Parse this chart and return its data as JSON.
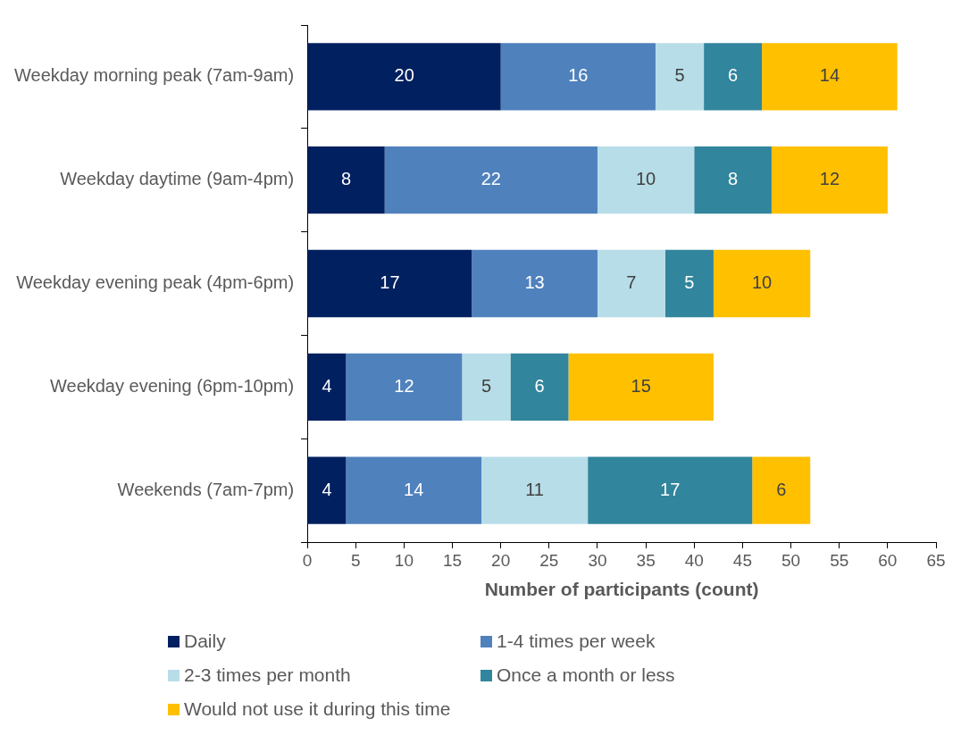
{
  "chart_data": {
    "type": "bar",
    "orientation": "horizontal",
    "stacked": true,
    "data_labels": true,
    "xlabel": "Number of participants (count)",
    "categories": [
      "Weekday morning peak (7am-9am)",
      "Weekday daytime (9am-4pm)",
      "Weekday evening peak (4pm-6pm)",
      "Weekday evening (6pm-10pm)",
      "Weekends (7am-7pm)"
    ],
    "series": [
      {
        "name": "Daily",
        "color": "#002060",
        "values": [
          20,
          8,
          17,
          4,
          4
        ]
      },
      {
        "name": "1-4 times per week",
        "color": "#4f81bd",
        "values": [
          16,
          22,
          13,
          12,
          14
        ]
      },
      {
        "name": "2-3 times per month",
        "color": "#b7dde8",
        "values": [
          5,
          10,
          7,
          5,
          11
        ]
      },
      {
        "name": "Once a month or less",
        "color": "#31859c",
        "values": [
          6,
          8,
          5,
          6,
          17
        ]
      },
      {
        "name": "Would not use it during this time",
        "color": "#ffc000",
        "values": [
          14,
          12,
          10,
          15,
          6
        ]
      }
    ],
    "xlim": [
      0,
      65
    ],
    "xticks": [
      0,
      5,
      10,
      15,
      20,
      25,
      30,
      35,
      40,
      45,
      50,
      55,
      60,
      65
    ],
    "grid": false,
    "legend": "bottom"
  }
}
